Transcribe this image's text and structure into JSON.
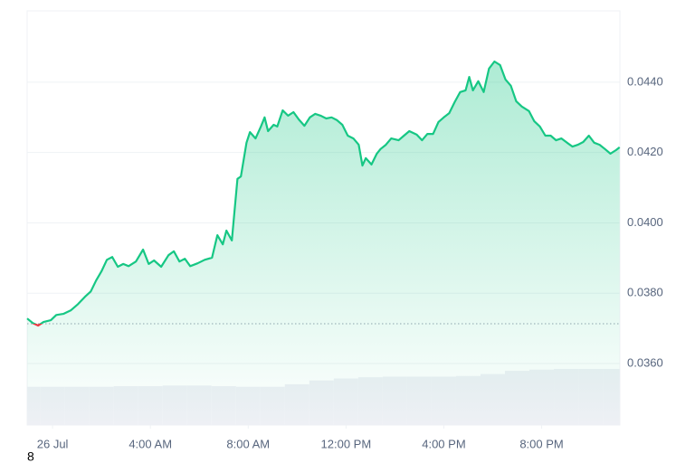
{
  "chart_data": {
    "type": "line",
    "annotation": "8",
    "xlim": [
      -1.04,
      23.2
    ],
    "xticks": [
      {
        "value": 0,
        "label": "26 Jul"
      },
      {
        "value": 4,
        "label": "4:00 AM"
      },
      {
        "value": 8,
        "label": "8:00 AM"
      },
      {
        "value": 12,
        "label": "12:00 PM"
      },
      {
        "value": 16,
        "label": "4:00 PM"
      },
      {
        "value": 20,
        "label": "8:00 PM"
      }
    ],
    "ylim": [
      0.03425,
      0.04603
    ],
    "yticks": [
      {
        "value": 0.036,
        "label": "0.0360"
      },
      {
        "value": 0.038,
        "label": "0.0380"
      },
      {
        "value": 0.04,
        "label": "0.0400"
      },
      {
        "value": 0.042,
        "label": "0.0420"
      },
      {
        "value": 0.044,
        "label": "0.0440"
      }
    ],
    "y2lim": [
      0,
      650
    ],
    "grid": true,
    "baseline": 0.03713,
    "below_color": "#ea3943",
    "series": [
      {
        "color": "#16c784",
        "x": [
          -1.04,
          -0.81,
          -0.59,
          -0.37,
          -0.07,
          0.15,
          0.44,
          0.74,
          1.04,
          1.33,
          1.56,
          1.78,
          2,
          2.22,
          2.44,
          2.67,
          2.89,
          3.11,
          3.41,
          3.7,
          3.93,
          4.15,
          4.44,
          4.74,
          4.96,
          5.19,
          5.41,
          5.63,
          5.93,
          6.22,
          6.52,
          6.74,
          6.96,
          7.11,
          7.33,
          7.56,
          7.7,
          7.93,
          8.07,
          8.3,
          8.52,
          8.67,
          8.81,
          9.04,
          9.19,
          9.41,
          9.63,
          9.85,
          10.07,
          10.3,
          10.52,
          10.74,
          10.96,
          11.19,
          11.41,
          11.63,
          11.85,
          12.07,
          12.3,
          12.52,
          12.67,
          12.81,
          13.04,
          13.26,
          13.41,
          13.63,
          13.85,
          14.15,
          14.37,
          14.59,
          14.89,
          15.11,
          15.33,
          15.56,
          15.78,
          16,
          16.22,
          16.44,
          16.67,
          16.89,
          17.04,
          17.19,
          17.41,
          17.63,
          17.85,
          18.07,
          18.3,
          18.52,
          18.74,
          18.96,
          19.19,
          19.48,
          19.7,
          19.93,
          20.15,
          20.37,
          20.59,
          20.81,
          21.04,
          21.26,
          21.48,
          21.7,
          21.93,
          22.15,
          22.37,
          22.59,
          22.81,
          23.04,
          23.19
        ],
        "values": [
          0.03728,
          0.03715,
          0.03708,
          0.03718,
          0.03723,
          0.03738,
          0.03741,
          0.03751,
          0.03769,
          0.0379,
          0.03805,
          0.03836,
          0.03862,
          0.03895,
          0.03903,
          0.03875,
          0.03883,
          0.03877,
          0.0389,
          0.03924,
          0.03883,
          0.03893,
          0.03875,
          0.03908,
          0.03919,
          0.0389,
          0.03898,
          0.03877,
          0.03885,
          0.03895,
          0.03901,
          0.03965,
          0.03939,
          0.03978,
          0.0395,
          0.04125,
          0.04132,
          0.04228,
          0.04258,
          0.0424,
          0.04274,
          0.043,
          0.04261,
          0.04279,
          0.04274,
          0.0432,
          0.04305,
          0.04315,
          0.04294,
          0.04276,
          0.043,
          0.0431,
          0.04305,
          0.04297,
          0.043,
          0.04292,
          0.04279,
          0.04248,
          0.0424,
          0.04222,
          0.04163,
          0.04184,
          0.04166,
          0.04197,
          0.0421,
          0.04222,
          0.0424,
          0.04235,
          0.04248,
          0.04261,
          0.04251,
          0.04235,
          0.04253,
          0.04253,
          0.04287,
          0.043,
          0.04312,
          0.04343,
          0.04372,
          0.04377,
          0.04415,
          0.04377,
          0.04403,
          0.04372,
          0.04439,
          0.04459,
          0.04449,
          0.04408,
          0.0439,
          0.04346,
          0.04331,
          0.04318,
          0.04289,
          0.04274,
          0.04248,
          0.04248,
          0.04235,
          0.0424,
          0.04228,
          0.04217,
          0.04222,
          0.0423,
          0.04248,
          0.04228,
          0.04222,
          0.0421,
          0.04197,
          0.04207,
          0.04215
        ]
      },
      {
        "color": "#eef0f5",
        "axis": "y2",
        "type": "bar",
        "x": [
          -1,
          0,
          1,
          2,
          3,
          4,
          5,
          6,
          7,
          8,
          9,
          10,
          11,
          12,
          13,
          14,
          15,
          16,
          17,
          18,
          19,
          20,
          21,
          22,
          23
        ],
        "values": [
          60,
          60,
          60,
          60,
          61,
          61,
          62,
          62,
          61,
          60,
          60,
          64,
          70,
          73,
          75,
          76,
          76,
          76,
          77,
          80,
          85,
          87,
          88,
          88,
          88
        ]
      }
    ]
  }
}
